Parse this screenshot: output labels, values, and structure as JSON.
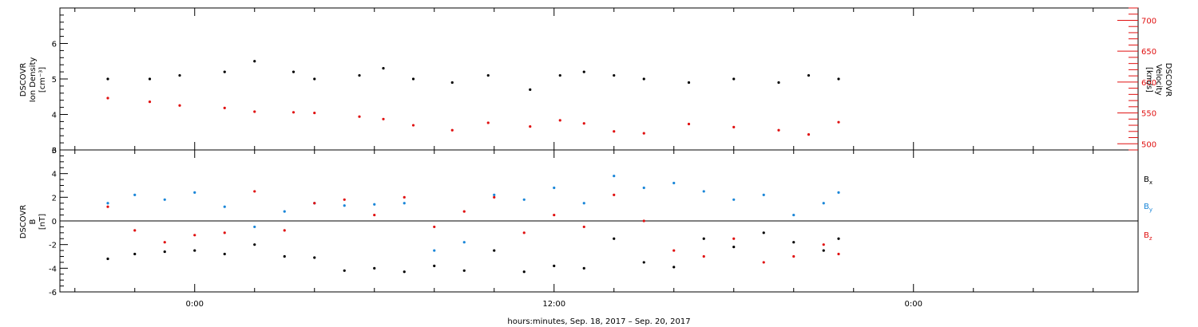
{
  "chart_data": [
    {
      "type": "scatter",
      "ylabel": [
        "DSCOVR",
        "Ion Density",
        "[cm⁻³]"
      ],
      "ylim": [
        3,
        7
      ],
      "yticks": [
        3,
        4,
        5,
        6
      ],
      "y2label": [
        "DSCOVR",
        "Velocity",
        "[km/s]"
      ],
      "y2lim": [
        490,
        720
      ],
      "y2ticks": [
        500,
        550,
        600,
        650,
        700
      ],
      "x_hours": [
        -2.9,
        -1.5,
        -0.5,
        1.0,
        2.0,
        3.3,
        4.0,
        5.5,
        6.3,
        7.3,
        8.6,
        9.8,
        11.2,
        12.2,
        13.0,
        14.0,
        15.0,
        16.5,
        18.0,
        19.5,
        20.5,
        21.5
      ],
      "series": [
        {
          "name": "Ion Density",
          "color": "#000000",
          "axis": "left",
          "values": [
            5.0,
            5.0,
            5.1,
            5.2,
            5.5,
            5.2,
            5.0,
            5.1,
            5.3,
            5.0,
            4.9,
            5.1,
            4.7,
            5.1,
            5.2,
            5.1,
            5.0,
            4.9,
            5.0,
            4.9,
            5.1,
            5.0
          ]
        },
        {
          "name": "Velocity",
          "color": "#e01010",
          "axis": "right",
          "values": [
            574,
            568,
            562,
            558,
            552,
            551,
            550,
            544,
            540,
            530,
            522,
            534,
            528,
            538,
            533,
            520,
            517,
            532,
            527,
            522,
            515,
            535
          ]
        }
      ]
    },
    {
      "type": "scatter",
      "ylabel": [
        "DSCOVR",
        "B",
        "[nT]"
      ],
      "ylim": [
        -6,
        6
      ],
      "yticks": [
        -6,
        -4,
        -2,
        0,
        2,
        4,
        6
      ],
      "x_hours": [
        -2.9,
        -2.0,
        -1.0,
        0.0,
        1.0,
        2.0,
        3.0,
        4.0,
        5.0,
        6.0,
        7.0,
        8.0,
        9.0,
        10.0,
        11.0,
        12.0,
        13.0,
        14.0,
        15.0,
        16.0,
        17.0,
        18.0,
        19.0,
        20.0,
        21.0,
        21.5
      ],
      "series": [
        {
          "name": "Bx",
          "color": "#000000",
          "values": [
            -3.2,
            -2.8,
            -2.6,
            -2.5,
            -2.8,
            -2.0,
            -3.0,
            -3.1,
            -4.2,
            -4.0,
            -4.3,
            -3.8,
            -4.2,
            -2.5,
            -4.3,
            -3.8,
            -4.0,
            -1.5,
            -3.5,
            -3.9,
            -1.5,
            -2.2,
            -1.0,
            -1.8,
            -2.5,
            -1.5
          ]
        },
        {
          "name": "By",
          "color": "#1a86d8",
          "values": [
            1.5,
            2.2,
            1.8,
            2.4,
            1.2,
            -0.5,
            0.8,
            1.5,
            1.3,
            1.4,
            1.5,
            -2.5,
            -1.8,
            2.2,
            1.8,
            2.8,
            1.5,
            3.8,
            2.8,
            3.2,
            2.5,
            1.8,
            2.2,
            0.5,
            1.5,
            2.4
          ]
        },
        {
          "name": "Bz",
          "color": "#e01010",
          "values": [
            1.2,
            -0.8,
            -1.8,
            -1.2,
            -1.0,
            2.5,
            -0.8,
            1.5,
            1.8,
            0.5,
            2.0,
            -0.5,
            0.8,
            2.0,
            -1.0,
            0.5,
            -0.5,
            2.2,
            0.0,
            -2.5,
            -3.0,
            -1.5,
            -3.5,
            -3.0,
            -2.0,
            -2.8
          ]
        }
      ]
    }
  ],
  "x_axis": {
    "range_hours": [
      -4.5,
      31.5
    ],
    "major_ticks_hours": [
      0,
      12,
      24
    ],
    "tick_labels": [
      "0:00",
      "12:00",
      "0:00"
    ],
    "label": "hours:minutes, Sep. 18, 2017 – Sep. 20, 2017"
  },
  "legend": {
    "items": [
      {
        "text": "B",
        "sub": "x",
        "color": "#000000"
      },
      {
        "text": "B",
        "sub": "y",
        "color": "#1a86d8"
      },
      {
        "text": "B",
        "sub": "z",
        "color": "#e01010"
      }
    ]
  }
}
